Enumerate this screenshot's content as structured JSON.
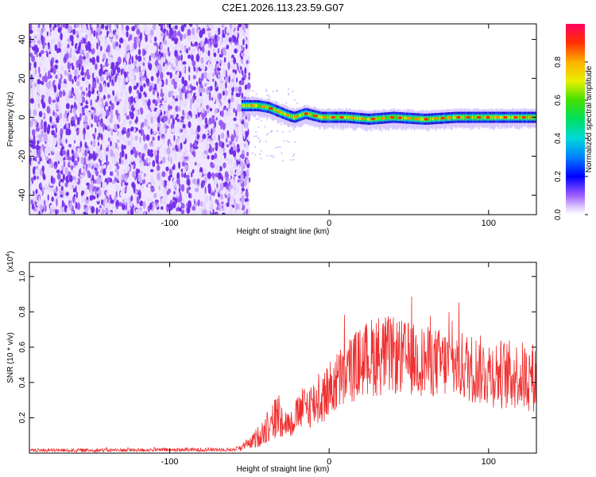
{
  "title": "C2E1.2026.113.23.59.G07",
  "chart_data": [
    {
      "type": "heatmap",
      "name": "spectrogram",
      "xlabel": "Height of straight line (km)",
      "ylabel": "Frequency (Hz)",
      "xlim": [
        -188,
        130
      ],
      "ylim": [
        -50,
        48
      ],
      "xticks": [
        -100,
        0,
        100
      ],
      "xtick_labels": [
        "-100",
        "0",
        "100"
      ],
      "yticks": [
        -40,
        -20,
        0,
        20,
        40
      ],
      "ytick_labels": [
        "-40",
        "-20",
        "0",
        "20",
        "40"
      ],
      "noise_region_x": [
        -188,
        -50
      ],
      "signal_track": {
        "x": [
          -55,
          -45,
          -38,
          -32,
          -26,
          -22,
          -15,
          -5,
          0,
          10,
          25,
          40,
          60,
          80,
          100,
          115,
          130
        ],
        "y": [
          6,
          6,
          5,
          3,
          1,
          0,
          2,
          0,
          0,
          0,
          -1,
          0,
          -1,
          0,
          0,
          0,
          0
        ]
      },
      "colorbar": {
        "label": "Normalized spectral amplitude",
        "range": [
          0.0,
          1.0
        ],
        "ticks": [
          0.0,
          0.2,
          0.4,
          0.6,
          0.8
        ],
        "tick_labels": [
          "0.0",
          "0.2",
          "0.4",
          "0.6",
          "0.8"
        ]
      }
    },
    {
      "type": "line",
      "name": "snr",
      "xlabel": "Height of straight line (km)",
      "ylabel": "SNR (10 * v/v)",
      "y_multiplier_base": "(x10",
      "y_multiplier_exp": "4",
      "y_multiplier_close": ")",
      "xlim": [
        -188,
        130
      ],
      "ylim": [
        0,
        1.08
      ],
      "xticks": [
        -100,
        0,
        100
      ],
      "xtick_labels": [
        "-100",
        "0",
        "100"
      ],
      "yticks": [
        0.2,
        0.4,
        0.6,
        0.8,
        1.0
      ],
      "ytick_labels": [
        "0.2",
        "0.4",
        "0.6",
        "0.8",
        "1.0"
      ],
      "line_color": "#f03030",
      "envelope": {
        "x": [
          -188,
          -60,
          -50,
          -45,
          -40,
          -35,
          -32,
          -28,
          -24,
          -20,
          -16,
          -10,
          -5,
          0,
          5,
          10,
          20,
          30,
          40,
          60,
          80,
          100,
          115,
          130
        ],
        "mean": [
          0.015,
          0.02,
          0.05,
          0.09,
          0.13,
          0.18,
          0.22,
          0.18,
          0.16,
          0.22,
          0.26,
          0.28,
          0.3,
          0.36,
          0.4,
          0.45,
          0.52,
          0.56,
          0.55,
          0.52,
          0.5,
          0.46,
          0.44,
          0.43
        ],
        "spread": [
          0.01,
          0.01,
          0.03,
          0.06,
          0.08,
          0.12,
          0.14,
          0.08,
          0.08,
          0.1,
          0.12,
          0.14,
          0.15,
          0.16,
          0.18,
          0.2,
          0.2,
          0.24,
          0.22,
          0.2,
          0.2,
          0.2,
          0.2,
          0.2
        ]
      }
    }
  ],
  "colors": {
    "background": "#ffffff",
    "noise_purple": "#7b2fe0",
    "snr_red": "#f03030"
  }
}
